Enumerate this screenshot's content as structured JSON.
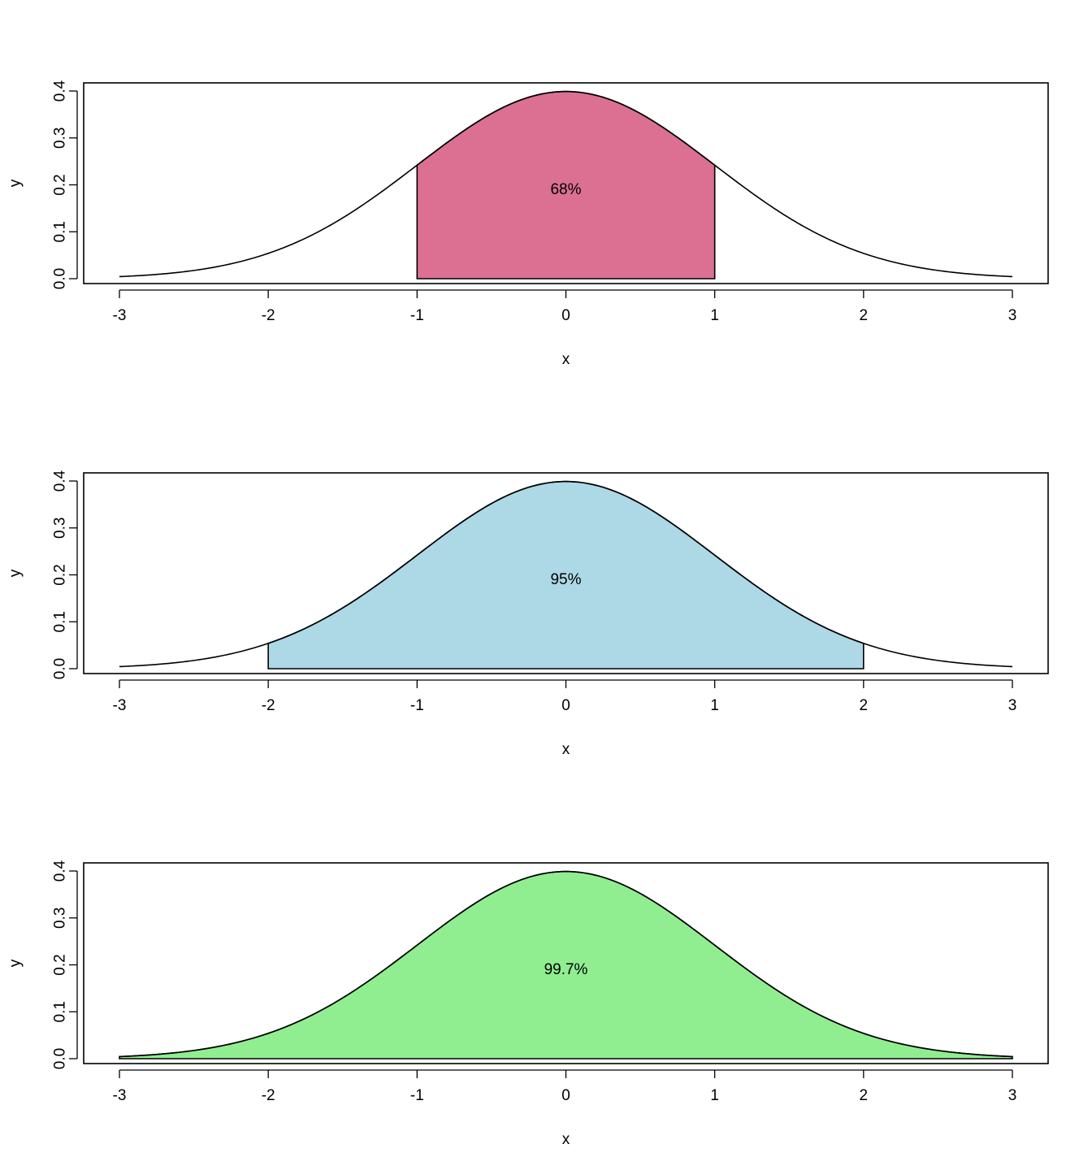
{
  "chart_data": [
    {
      "type": "area",
      "function": "standard normal density",
      "xlabel": "x",
      "ylabel": "y",
      "xlim": [
        -3,
        3
      ],
      "ylim": [
        0,
        0.4
      ],
      "x_ticks": [
        "-3",
        "-2",
        "-1",
        "0",
        "1",
        "2",
        "3"
      ],
      "y_ticks": [
        "0.0",
        "0.1",
        "0.2",
        "0.3",
        "0.4"
      ],
      "shaded_range": [
        -1,
        1
      ],
      "fill_color": "#DB7093",
      "annotation": "68%",
      "annotation_position": [
        0,
        0.19
      ],
      "grid": false,
      "legend": "none"
    },
    {
      "type": "area",
      "function": "standard normal density",
      "xlabel": "x",
      "ylabel": "y",
      "xlim": [
        -3,
        3
      ],
      "ylim": [
        0,
        0.4
      ],
      "x_ticks": [
        "-3",
        "-2",
        "-1",
        "0",
        "1",
        "2",
        "3"
      ],
      "y_ticks": [
        "0.0",
        "0.1",
        "0.2",
        "0.3",
        "0.4"
      ],
      "shaded_range": [
        -2,
        2
      ],
      "fill_color": "#ADD8E6",
      "annotation": "95%",
      "annotation_position": [
        0,
        0.19
      ],
      "grid": false,
      "legend": "none"
    },
    {
      "type": "area",
      "function": "standard normal density",
      "xlabel": "x",
      "ylabel": "y",
      "xlim": [
        -3,
        3
      ],
      "ylim": [
        0,
        0.4
      ],
      "x_ticks": [
        "-3",
        "-2",
        "-1",
        "0",
        "1",
        "2",
        "3"
      ],
      "y_ticks": [
        "0.0",
        "0.1",
        "0.2",
        "0.3",
        "0.4"
      ],
      "shaded_range": [
        -3,
        3
      ],
      "fill_color": "#90EE90",
      "annotation": "99.7%",
      "annotation_position": [
        0,
        0.19
      ],
      "grid": false,
      "legend": "none"
    }
  ]
}
